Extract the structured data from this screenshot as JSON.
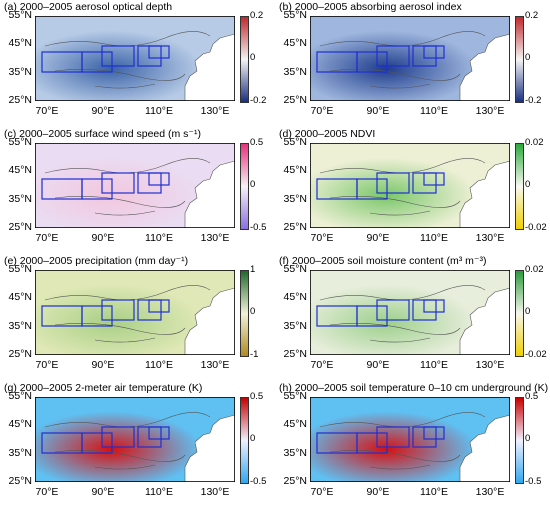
{
  "panels": [
    {
      "id": "a",
      "title": "(a) 2000–2005 aerosol optical depth",
      "cbar": [
        "0.2",
        "0",
        "-0.2"
      ],
      "colors": {
        "low": "#1a2f80",
        "mid": "#f4f4f4",
        "high": "#c0282d"
      },
      "bg": "#b7cbe6",
      "hot": "#3a62a8"
    },
    {
      "id": "b",
      "title": "(b) 2000–2005 absorbing aerosol index",
      "cbar": [
        "0.2",
        "0",
        "-0.2"
      ],
      "colors": {
        "low": "#1a2f80",
        "mid": "#f4f4f4",
        "high": "#c0282d"
      },
      "bg": "#9fb7de",
      "hot": "#1e3c8c"
    },
    {
      "id": "c",
      "title": "(c) 2000–2005 surface wind speed (m s⁻¹)",
      "cbar": [
        "0.5",
        "0",
        "-0.5"
      ],
      "colors": {
        "low": "#8a6fe0",
        "mid": "#f6f0f6",
        "high": "#e8307c"
      },
      "bg": "#eadcf2",
      "hot": "#f2c7de"
    },
    {
      "id": "d",
      "title": "(d) 2000–2005 NDVI",
      "cbar": [
        "0.02",
        "0",
        "-0.02"
      ],
      "colors": {
        "low": "#f0d000",
        "mid": "#f8f8f0",
        "high": "#2aaa3a"
      },
      "bg": "#eef0d6",
      "hot": "#7ac76a"
    },
    {
      "id": "e",
      "title": "(e) 2000–2005 precipitation (mm day⁻¹)",
      "cbar": [
        "1",
        "0",
        "-1"
      ],
      "colors": {
        "low": "#b08a20",
        "mid": "#f2f2d8",
        "high": "#1e6a2a"
      },
      "bg": "#dfe8b6",
      "hot": "#a8cf86"
    },
    {
      "id": "f",
      "title": "(f)  2000–2005 soil moisture content (m³ m⁻³)",
      "cbar": [
        "0.02",
        "0",
        "-0.02"
      ],
      "colors": {
        "low": "#f0d000",
        "mid": "#f6f6ec",
        "high": "#2a9a3a"
      },
      "bg": "#e8eedc",
      "hot": "#9ccf8c"
    },
    {
      "id": "g",
      "title": "(g) 2000–2005 2-meter air temperature (K)",
      "cbar": [
        "0.5",
        "0",
        "-0.5"
      ],
      "colors": {
        "low": "#30a8f0",
        "mid": "#f0f0ff",
        "high": "#c80000"
      },
      "bg": "#5fc0f2",
      "hot": "#d81010"
    },
    {
      "id": "h",
      "title": "(h) 2000–2005 soil temperature 0–10 cm underground (K)",
      "cbar": [
        "0.5",
        "0",
        "-0.5"
      ],
      "colors": {
        "low": "#30a8f0",
        "mid": "#f0f0ff",
        "high": "#c80000"
      },
      "bg": "#5fc0f2",
      "hot": "#d81010"
    }
  ],
  "lat_labels": [
    "55°N",
    "45°N",
    "35°N",
    "25°N"
  ],
  "lon_labels": [
    "70°E",
    "90°E",
    "110°E",
    "130°E"
  ],
  "box_color": "#1f2fd0"
}
